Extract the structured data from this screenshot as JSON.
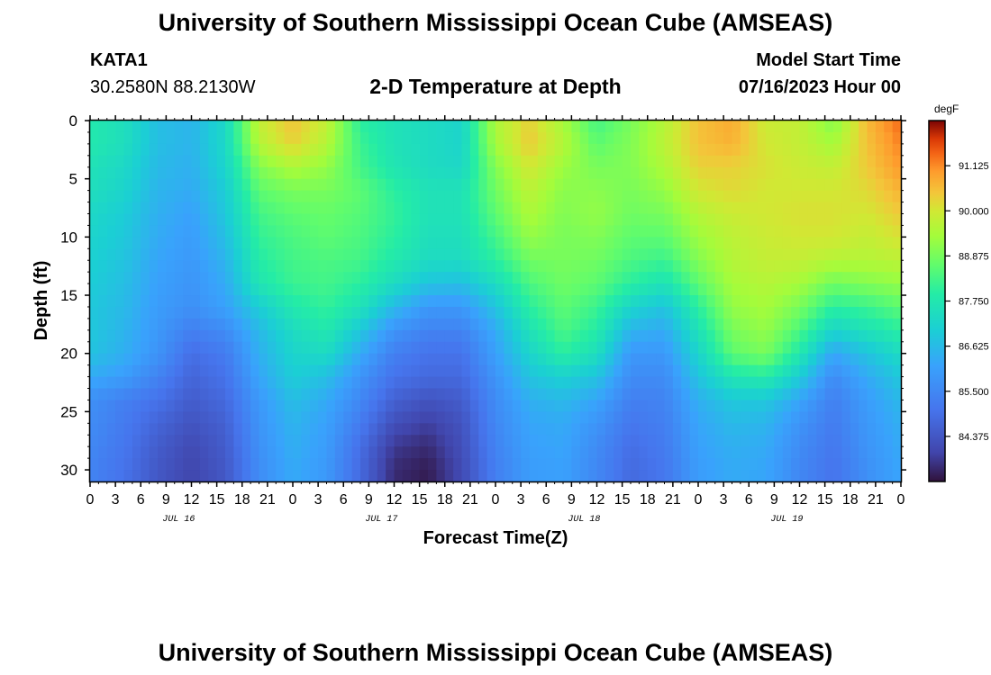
{
  "header": {
    "title": "University of Southern Mississippi Ocean Cube (AMSEAS)",
    "station": "KATA1",
    "coordinates": "30.2580N  88.2130W",
    "chart_heading": "2-D Temperature at Depth",
    "model_start_label": "Model Start Time",
    "model_start_value": "07/16/2023 Hour 00"
  },
  "footer": {
    "title": "University of Southern Mississippi Ocean Cube (AMSEAS)"
  },
  "chart_data": {
    "type": "heatmap",
    "title": "2-D Temperature at Depth",
    "xlabel": "Forecast Time(Z)",
    "ylabel": "Depth (ft)",
    "x_range_hours": [
      0,
      96
    ],
    "x_step_hours": 3,
    "x_tick_labels": [
      "0",
      "3",
      "6",
      "9",
      "12",
      "15",
      "18",
      "21",
      "0",
      "3",
      "6",
      "9",
      "12",
      "15",
      "18",
      "21",
      "0",
      "3",
      "6",
      "9",
      "12",
      "15",
      "18",
      "21",
      "0",
      "3",
      "6",
      "9",
      "12",
      "15",
      "18",
      "21",
      "0"
    ],
    "day_labels": [
      {
        "label": "JUL 16",
        "hour": 10.5
      },
      {
        "label": "JUL 17",
        "hour": 34.5
      },
      {
        "label": "JUL 18",
        "hour": 58.5
      },
      {
        "label": "JUL 19",
        "hour": 82.5
      }
    ],
    "y_range_ft": [
      0,
      31
    ],
    "y_ticks": [
      0,
      5,
      10,
      15,
      20,
      25,
      30
    ],
    "y_tick_labels": [
      "0",
      "5",
      "10",
      "15",
      "20",
      "25",
      "30"
    ],
    "colorbar": {
      "unit": "degF",
      "range": [
        83.25,
        92.25
      ],
      "ticks": [
        84.375,
        85.5,
        86.625,
        87.75,
        88.875,
        90.0,
        91.125
      ],
      "tick_labels": [
        "84.375",
        "85.500",
        "86.625",
        "87.750",
        "88.875",
        "90.000",
        "91.125"
      ]
    },
    "z_grid": {
      "description": "Approximate temperature (degF) read from the heatmap",
      "hours": [
        0,
        4,
        8,
        12,
        16,
        20,
        24,
        28,
        32,
        36,
        40,
        44,
        48,
        52,
        56,
        60,
        64,
        68,
        72,
        76,
        80,
        84,
        88,
        92,
        96
      ],
      "depths_ft": [
        0,
        2,
        4,
        6,
        8,
        10,
        12,
        14,
        16,
        18,
        20,
        22,
        24,
        26,
        28,
        30,
        31
      ],
      "values": [
        [
          87.8,
          87.5,
          86.7,
          86.5,
          87.3,
          89.8,
          90.5,
          89.8,
          88.0,
          87.6,
          87.4,
          87.2,
          89.5,
          90.3,
          89.4,
          88.3,
          88.9,
          89.6,
          90.5,
          90.8,
          89.9,
          89.8,
          89.0,
          90.6,
          91.4
        ],
        [
          87.8,
          87.5,
          86.7,
          86.5,
          87.3,
          89.6,
          90.3,
          89.6,
          88.2,
          87.6,
          87.4,
          87.2,
          89.4,
          90.4,
          89.6,
          88.6,
          89.0,
          89.7,
          90.5,
          90.7,
          90.0,
          89.8,
          89.4,
          90.5,
          91.2
        ],
        [
          87.6,
          87.3,
          86.6,
          86.4,
          87.2,
          89.0,
          89.5,
          89.2,
          88.3,
          87.7,
          87.4,
          87.3,
          89.0,
          90.0,
          89.3,
          88.9,
          89.0,
          89.5,
          90.3,
          90.3,
          90.1,
          89.9,
          89.8,
          90.4,
          91.0
        ],
        [
          87.5,
          87.2,
          86.5,
          86.3,
          87.0,
          88.6,
          88.9,
          88.9,
          88.6,
          88.0,
          87.6,
          87.6,
          88.8,
          89.7,
          89.1,
          89.1,
          88.9,
          89.2,
          90.0,
          90.2,
          90.0,
          90.0,
          90.0,
          90.2,
          90.7
        ],
        [
          87.3,
          87.0,
          86.4,
          86.1,
          86.9,
          88.3,
          88.6,
          88.7,
          88.5,
          88.1,
          87.6,
          87.6,
          88.6,
          89.5,
          89.0,
          89.2,
          88.8,
          88.9,
          89.6,
          89.9,
          90.0,
          90.1,
          90.1,
          90.0,
          90.4
        ],
        [
          87.2,
          86.9,
          86.3,
          86.0,
          86.7,
          88.1,
          88.4,
          88.6,
          88.4,
          88.0,
          87.5,
          87.5,
          88.3,
          89.2,
          88.9,
          89.0,
          88.6,
          88.6,
          89.3,
          89.7,
          89.9,
          90.0,
          90.0,
          89.8,
          90.1
        ],
        [
          87.1,
          86.8,
          86.2,
          85.9,
          86.5,
          87.9,
          88.3,
          88.4,
          88.3,
          87.8,
          87.4,
          87.4,
          88.0,
          88.8,
          88.9,
          88.8,
          88.4,
          88.2,
          89.0,
          89.6,
          89.8,
          89.8,
          89.6,
          89.6,
          89.7
        ],
        [
          87.0,
          86.7,
          86.1,
          85.8,
          86.3,
          87.7,
          88.2,
          88.3,
          88.0,
          87.4,
          86.8,
          86.7,
          87.4,
          88.4,
          88.8,
          88.6,
          88.0,
          87.6,
          88.6,
          89.4,
          89.6,
          89.4,
          88.8,
          89.0,
          89.2
        ],
        [
          86.9,
          86.6,
          86.0,
          85.7,
          86.1,
          87.0,
          87.8,
          88.1,
          87.6,
          86.6,
          85.9,
          85.9,
          86.8,
          88.0,
          88.6,
          88.2,
          87.2,
          86.8,
          88.0,
          89.2,
          89.4,
          88.9,
          88.0,
          88.2,
          88.6
        ],
        [
          86.9,
          86.5,
          85.9,
          85.3,
          85.6,
          86.6,
          87.4,
          87.8,
          86.9,
          85.8,
          85.4,
          85.4,
          86.3,
          87.6,
          88.4,
          87.9,
          86.5,
          86.3,
          87.6,
          88.9,
          89.2,
          88.4,
          87.2,
          87.6,
          88.0
        ],
        [
          86.8,
          86.4,
          85.8,
          84.9,
          85.2,
          86.4,
          87.2,
          87.4,
          86.3,
          85.3,
          85.0,
          85.0,
          86.1,
          87.2,
          88.0,
          87.5,
          85.9,
          85.9,
          87.2,
          88.6,
          88.9,
          87.8,
          86.2,
          86.8,
          87.4
        ],
        [
          86.3,
          86.0,
          85.4,
          84.7,
          85.0,
          86.2,
          87.0,
          86.7,
          85.8,
          85.0,
          84.8,
          84.8,
          85.8,
          86.8,
          87.1,
          86.8,
          85.6,
          85.6,
          86.8,
          87.7,
          87.9,
          87.0,
          85.6,
          86.3,
          86.9
        ],
        [
          85.7,
          85.3,
          85.0,
          84.5,
          84.8,
          85.9,
          86.7,
          86.3,
          85.5,
          84.6,
          84.3,
          84.5,
          85.6,
          86.4,
          86.6,
          86.2,
          85.3,
          85.4,
          86.4,
          86.9,
          86.9,
          86.2,
          85.3,
          86.0,
          86.6
        ],
        [
          85.6,
          85.2,
          84.7,
          84.3,
          84.6,
          85.8,
          86.5,
          86.1,
          85.2,
          84.2,
          83.9,
          84.3,
          85.5,
          86.2,
          86.3,
          85.8,
          85.1,
          85.3,
          86.2,
          86.6,
          86.5,
          85.8,
          85.2,
          85.9,
          86.4
        ],
        [
          85.5,
          85.1,
          84.5,
          84.1,
          84.5,
          85.7,
          86.4,
          86.0,
          84.9,
          83.8,
          83.6,
          84.2,
          85.4,
          86.1,
          86.2,
          85.6,
          84.9,
          85.2,
          86.1,
          86.4,
          86.3,
          85.6,
          85.1,
          85.8,
          86.3
        ],
        [
          85.4,
          85.0,
          84.4,
          84.0,
          84.4,
          85.6,
          86.3,
          85.9,
          84.8,
          83.6,
          83.4,
          84.1,
          85.3,
          86.0,
          86.1,
          85.5,
          84.8,
          85.1,
          86.0,
          86.3,
          86.2,
          85.5,
          85.0,
          85.7,
          86.2
        ],
        [
          85.4,
          85.0,
          84.4,
          84.0,
          84.4,
          85.6,
          86.3,
          85.9,
          84.8,
          83.6,
          83.4,
          84.1,
          85.3,
          86.0,
          86.1,
          85.5,
          84.8,
          85.1,
          86.0,
          86.3,
          86.2,
          85.5,
          85.0,
          85.7,
          86.2
        ]
      ]
    }
  }
}
